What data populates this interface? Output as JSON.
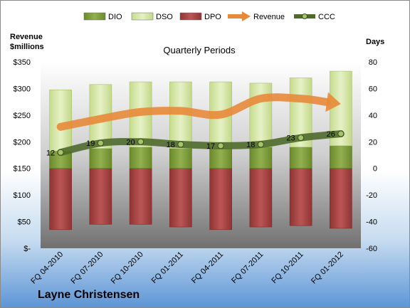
{
  "chart_data": {
    "type": "bar",
    "title": "Quarterly Periods",
    "company": "Layne Christensen",
    "ylabel_left": [
      "Revenue",
      "$millions"
    ],
    "ylabel_right": "Days",
    "categories": [
      "FQ 04-2010",
      "FQ 07-2010",
      "FQ 10-2010",
      "FQ 01-2011",
      "FQ 04-2011",
      "FQ 07-2011",
      "FQ 10-2011",
      "FQ 01-2012"
    ],
    "y_left": {
      "min": 0,
      "max": 350,
      "ticks": [
        "$-",
        "$50",
        "$100",
        "$150",
        "$200",
        "$250",
        "$300",
        "$350"
      ]
    },
    "y_right": {
      "min": -60,
      "max": 80,
      "ticks": [
        "-60",
        "-40",
        "-20",
        "0",
        "20",
        "40",
        "60",
        "80"
      ]
    },
    "series": [
      {
        "name": "DIO",
        "axis": "right",
        "values": [
          13,
          15,
          16,
          15,
          15,
          16,
          16,
          17
        ]
      },
      {
        "name": "DSO",
        "axis": "right",
        "values": [
          46,
          48,
          49,
          50,
          50,
          48,
          52,
          56
        ]
      },
      {
        "name": "DPO",
        "axis": "right",
        "values": [
          -46,
          -42,
          -42,
          -44,
          -46,
          -44,
          -43,
          -45
        ]
      },
      {
        "name": "Revenue",
        "axis": "left",
        "values": [
          228,
          243,
          256,
          258,
          251,
          281,
          281,
          271
        ]
      },
      {
        "name": "CCC",
        "axis": "right",
        "values": [
          12,
          19,
          20,
          18,
          17,
          18,
          23,
          26
        ]
      }
    ],
    "legend": {
      "position": "top",
      "entries": [
        "DIO",
        "DSO",
        "DPO",
        "Revenue",
        "CCC"
      ]
    },
    "colors": {
      "DIO": "#7d9b3a",
      "DSO": "#d5e6a6",
      "DPO": "#a94444",
      "Revenue": "#e8893a",
      "CCC": "#4f6a2b"
    },
    "grid": false
  }
}
